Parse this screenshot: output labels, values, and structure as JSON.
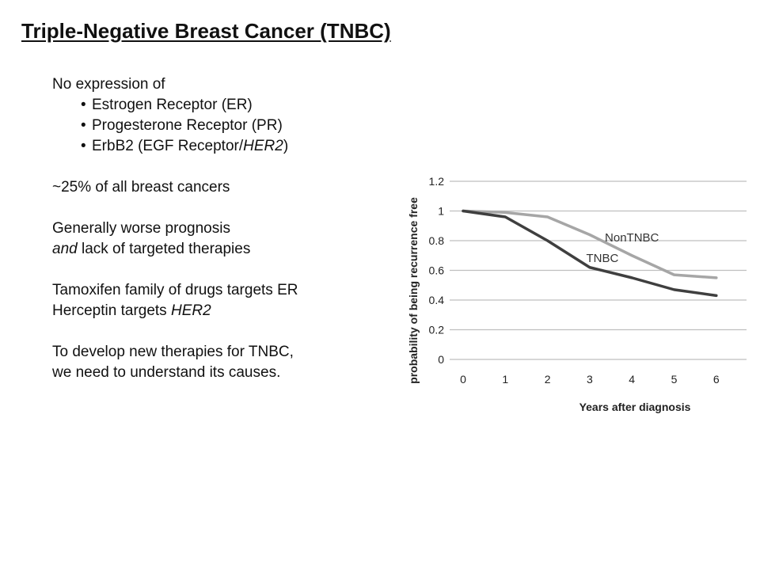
{
  "slide": {
    "title": "Triple-Negative Breast Cancer (TNBC)",
    "intro": "No expression of",
    "bullets": [
      {
        "text": "Estrogen Receptor (ER)"
      },
      {
        "text": "Progesterone Receptor (PR)"
      },
      {
        "prefix": "ErbB2 (EGF Receptor/",
        "italic": "HER2",
        "suffix": ")"
      }
    ],
    "stat": "~25% of all breast cancers",
    "prognosis_line1": "Generally worse prognosis",
    "prognosis_line2_italic": "and",
    "prognosis_line2_rest": " lack of targeted therapies",
    "tamoxifen": "Tamoxifen family of drugs targets ER",
    "herceptin_prefix": "Herceptin targets ",
    "herceptin_italic": "HER2",
    "develop_line1": "To develop new therapies for TNBC,",
    "develop_line2": "we need to understand its causes."
  },
  "chart_data": {
    "type": "line",
    "title": "",
    "xlabel": "Years  after diagnosis",
    "ylabel": "probability of being recurrence free",
    "x": [
      0,
      1,
      2,
      3,
      4,
      5,
      6
    ],
    "x_ticks": [
      "0",
      "1",
      "2",
      "3",
      "4",
      "5",
      "6"
    ],
    "y_ticks": [
      "0",
      "0.2",
      "0.4",
      "0.6",
      "0.8",
      "1",
      "1.2"
    ],
    "ylim": [
      0,
      1.2
    ],
    "grid": true,
    "legend": "inline labels",
    "series": [
      {
        "name": "NonTNBC",
        "color": "#a6a6a6",
        "values": [
          1.0,
          0.99,
          0.96,
          0.84,
          0.7,
          0.57,
          0.55
        ]
      },
      {
        "name": "TNBC",
        "color": "#3f3f3f",
        "values": [
          1.0,
          0.96,
          0.8,
          0.62,
          0.55,
          0.47,
          0.43
        ]
      }
    ]
  }
}
